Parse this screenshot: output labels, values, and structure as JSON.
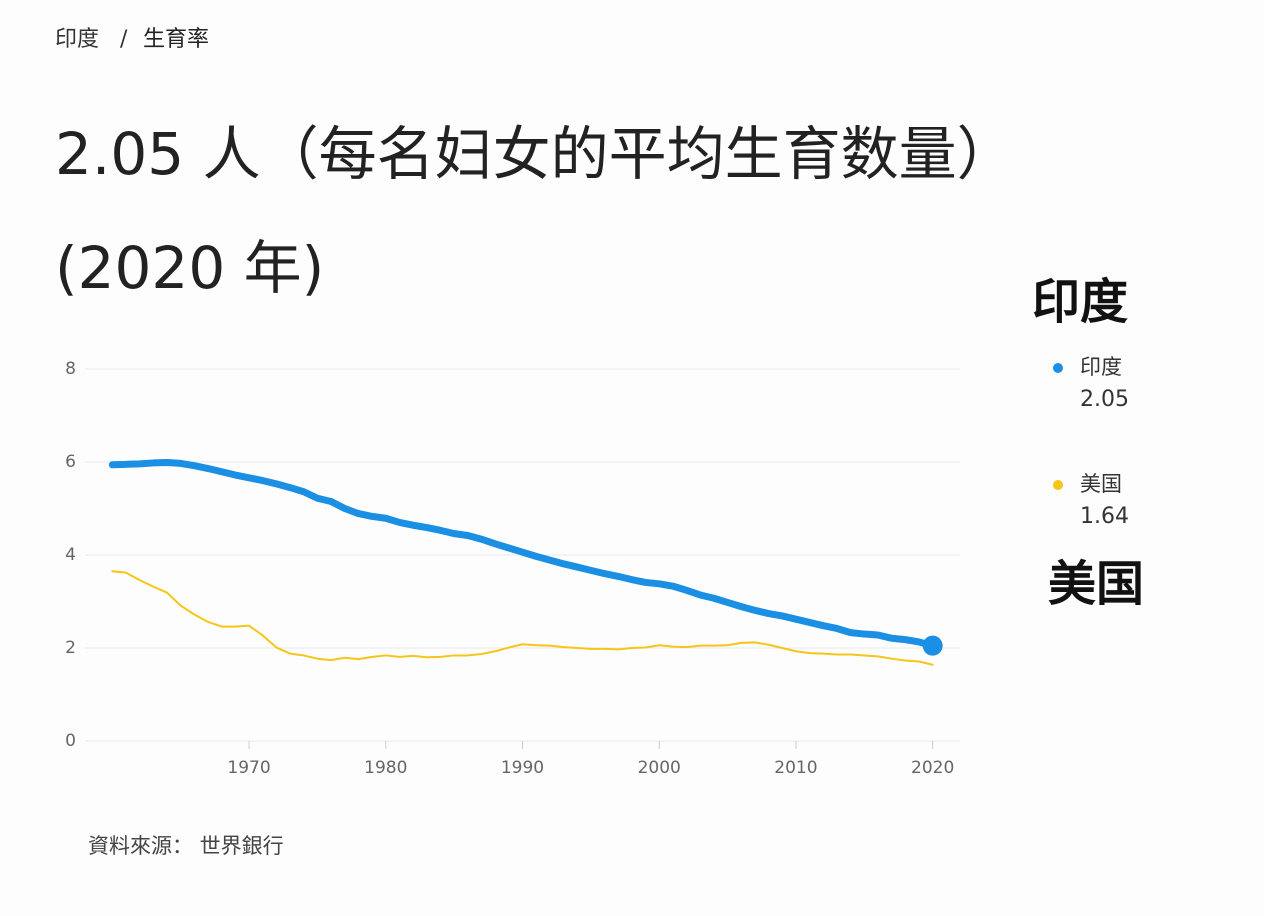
{
  "breadcrumb": [
    "印度",
    "生育率"
  ],
  "breadcrumb_separator": "/",
  "chart_data": {
    "type": "line",
    "title": [
      "2.05 人（每名妇女的平均生育数量）",
      "(2020 年)"
    ],
    "annotations": [
      "印度",
      "美国"
    ],
    "x": [
      1960,
      1961,
      1962,
      1963,
      1964,
      1965,
      1966,
      1967,
      1968,
      1969,
      1970,
      1971,
      1972,
      1973,
      1974,
      1975,
      1976,
      1977,
      1978,
      1979,
      1980,
      1981,
      1982,
      1983,
      1984,
      1985,
      1986,
      1987,
      1988,
      1989,
      1990,
      1991,
      1992,
      1993,
      1994,
      1995,
      1996,
      1997,
      1998,
      1999,
      2000,
      2001,
      2002,
      2003,
      2004,
      2005,
      2006,
      2007,
      2008,
      2009,
      2010,
      2011,
      2012,
      2013,
      2014,
      2015,
      2016,
      2017,
      2018,
      2019,
      2020
    ],
    "series": [
      {
        "name": "印度",
        "color": "#1a8fe3",
        "values": [
          5.94,
          5.95,
          5.96,
          5.98,
          5.99,
          5.97,
          5.92,
          5.86,
          5.79,
          5.72,
          5.66,
          5.6,
          5.53,
          5.45,
          5.36,
          5.22,
          5.15,
          5.0,
          4.89,
          4.83,
          4.79,
          4.7,
          4.64,
          4.59,
          4.53,
          4.46,
          4.42,
          4.34,
          4.24,
          4.15,
          4.06,
          3.97,
          3.89,
          3.81,
          3.74,
          3.67,
          3.6,
          3.54,
          3.47,
          3.41,
          3.38,
          3.33,
          3.24,
          3.14,
          3.07,
          2.98,
          2.89,
          2.81,
          2.74,
          2.69,
          2.62,
          2.55,
          2.48,
          2.42,
          2.33,
          2.3,
          2.28,
          2.21,
          2.18,
          2.13,
          2.05
        ]
      },
      {
        "name": "美国",
        "color": "#f5c518",
        "values": [
          3.65,
          3.62,
          3.46,
          3.32,
          3.19,
          2.91,
          2.72,
          2.56,
          2.46,
          2.46,
          2.48,
          2.27,
          2.01,
          1.88,
          1.84,
          1.77,
          1.74,
          1.79,
          1.76,
          1.81,
          1.84,
          1.81,
          1.83,
          1.8,
          1.81,
          1.84,
          1.84,
          1.87,
          1.93,
          2.01,
          2.08,
          2.06,
          2.05,
          2.02,
          2.0,
          1.98,
          1.98,
          1.97,
          2.0,
          2.01,
          2.06,
          2.03,
          2.02,
          2.05,
          2.05,
          2.06,
          2.11,
          2.12,
          2.07,
          2.0,
          1.93,
          1.89,
          1.88,
          1.86,
          1.86,
          1.84,
          1.82,
          1.77,
          1.73,
          1.71,
          1.64
        ]
      }
    ],
    "xlim": [
      1958,
      2022
    ],
    "xticks": [
      1970,
      1980,
      1990,
      2000,
      2010,
      2020
    ],
    "ylim": [
      0,
      8
    ],
    "yticks": [
      0,
      2,
      4,
      6,
      8
    ],
    "grid": true,
    "source": "資料來源： 世界銀行"
  }
}
